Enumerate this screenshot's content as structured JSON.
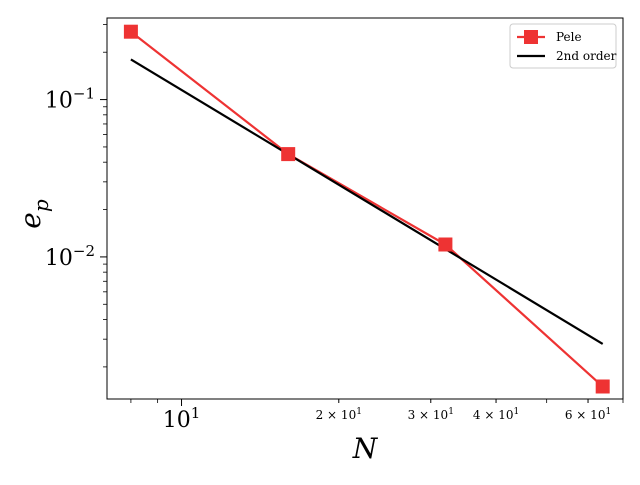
{
  "chart_data": {
    "type": "line",
    "xscale": "log",
    "yscale": "log",
    "xlim": [
      7.2,
      70
    ],
    "ylim": [
      0.00125,
      0.33
    ],
    "xlabel_main": "N",
    "ylabel_main": "e",
    "ylabel_sub": "p",
    "grid": false,
    "legend_position": "top-right",
    "x_ticks": [
      {
        "value": 10,
        "base": "10",
        "exp": "1",
        "major": true
      },
      {
        "value": 20,
        "base": "2 × 10",
        "exp": "1",
        "major": false
      },
      {
        "value": 30,
        "base": "3 × 10",
        "exp": "1",
        "major": false
      },
      {
        "value": 40,
        "base": "4 × 10",
        "exp": "1",
        "major": false
      },
      {
        "value": 60,
        "base": "6 × 10",
        "exp": "1",
        "major": false
      }
    ],
    "y_ticks": [
      {
        "value": 0.1,
        "base": "10",
        "exp": "−1"
      },
      {
        "value": 0.01,
        "base": "10",
        "exp": "−2"
      }
    ],
    "series": [
      {
        "name": "Pele",
        "color": "#ee3333",
        "marker": "square",
        "x": [
          8,
          16,
          32,
          64
        ],
        "y": [
          0.27,
          0.045,
          0.012,
          0.0015
        ]
      },
      {
        "name": "2nd order",
        "color": "#000000",
        "marker": "none",
        "x": [
          8,
          64
        ],
        "y": [
          0.18,
          0.0028
        ]
      }
    ]
  }
}
